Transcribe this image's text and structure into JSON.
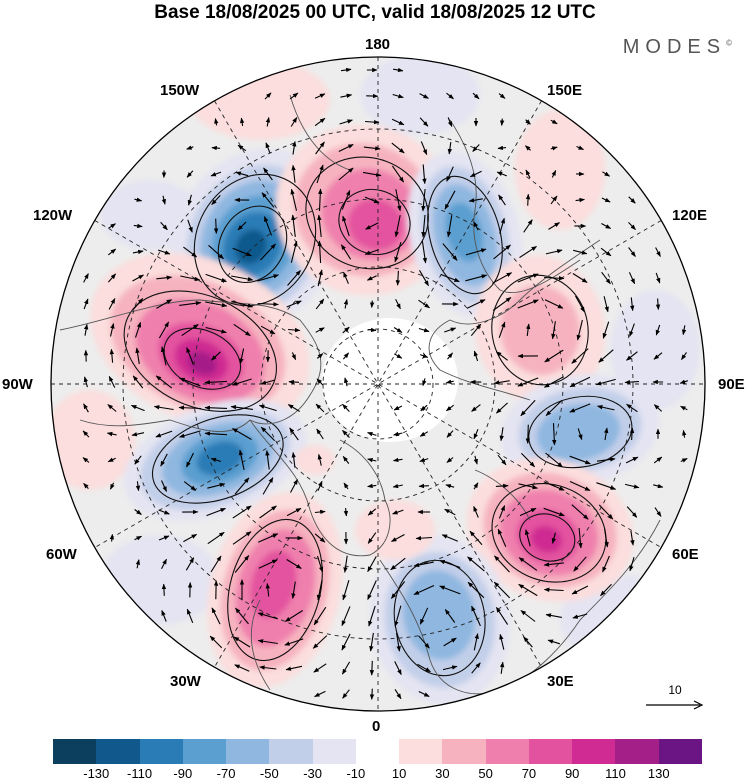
{
  "header": {
    "title": "Base 18/08/2025 00 UTC, valid 18/08/2025 12 UTC",
    "brand": "MODES",
    "brand_mark": "©"
  },
  "map": {
    "projection": "north-polar-stereographic",
    "longitude_labels": {
      "top": "180",
      "top_right": "150E",
      "upper_right": "120E",
      "right": "90E",
      "lower_right": "60E",
      "bottom_right": "30E",
      "bottom": "0",
      "bottom_left": "30W",
      "lower_left": "60W",
      "left": "90W",
      "upper_left": "120W",
      "top_left": "150W"
    },
    "field_description": "anomaly field (shaded) with wind vectors",
    "anomaly_centres": [
      {
        "sign": "negative",
        "value": -110,
        "near": "160W 60N"
      },
      {
        "sign": "positive",
        "value": 70,
        "near": "175E 65N"
      },
      {
        "sign": "negative",
        "value": -70,
        "near": "150E 70N"
      },
      {
        "sign": "positive",
        "value": 110,
        "near": "100W 55N"
      },
      {
        "sign": "negative",
        "value": -90,
        "near": "75W 65N"
      },
      {
        "sign": "positive",
        "value": 30,
        "near": "120E 60N"
      },
      {
        "sign": "negative",
        "value": -50,
        "near": "75E 60N"
      },
      {
        "sign": "positive",
        "value": 90,
        "near": "50E 55N"
      },
      {
        "sign": "positive",
        "value": 70,
        "near": "35W 55N"
      },
      {
        "sign": "negative",
        "value": -50,
        "near": "20E 65N"
      }
    ]
  },
  "vector_scale": {
    "label": "10"
  },
  "colorbar": {
    "colors": [
      "#0c3e5e",
      "#11598c",
      "#2a7cb6",
      "#5a9fd0",
      "#8fb7e0",
      "#c2cfe9",
      "#e4e4f2",
      "#ffffff",
      "#fbdedd",
      "#f6b3bf",
      "#ef80ad",
      "#e3529f",
      "#cf2b92",
      "#a51f88",
      "#6b1483"
    ],
    "tick_labels": [
      "-130",
      "-110",
      "-90",
      "-70",
      "-50",
      "-30",
      "-10",
      "10",
      "30",
      "50",
      "70",
      "90",
      "110",
      "130"
    ]
  }
}
